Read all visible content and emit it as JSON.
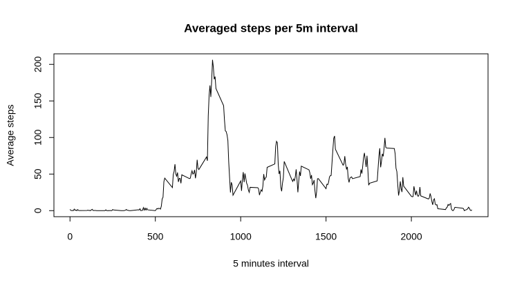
{
  "chart_data": {
    "type": "line",
    "title": "Averaged steps per 5m interval",
    "x_label": "5 minutes interval",
    "y_label": "Average steps",
    "color": "#000000",
    "x": [
      0,
      5,
      10,
      15,
      20,
      25,
      30,
      35,
      40,
      45,
      50,
      55,
      100,
      105,
      110,
      115,
      120,
      125,
      130,
      135,
      140,
      145,
      150,
      155,
      200,
      205,
      210,
      215,
      220,
      225,
      230,
      235,
      240,
      245,
      250,
      255,
      300,
      305,
      310,
      315,
      320,
      325,
      330,
      335,
      340,
      345,
      350,
      355,
      400,
      405,
      410,
      415,
      420,
      425,
      430,
      435,
      440,
      445,
      450,
      455,
      500,
      505,
      510,
      515,
      520,
      525,
      530,
      535,
      540,
      545,
      550,
      555,
      600,
      605,
      610,
      615,
      620,
      625,
      630,
      635,
      640,
      645,
      650,
      655,
      700,
      705,
      710,
      715,
      720,
      725,
      730,
      735,
      740,
      745,
      750,
      755,
      800,
      805,
      810,
      815,
      820,
      825,
      830,
      835,
      840,
      845,
      850,
      855,
      900,
      905,
      910,
      915,
      920,
      925,
      930,
      935,
      940,
      945,
      950,
      955,
      1000,
      1005,
      1010,
      1015,
      1020,
      1025,
      1030,
      1035,
      1040,
      1045,
      1050,
      1055,
      1100,
      1105,
      1110,
      1115,
      1120,
      1125,
      1130,
      1135,
      1140,
      1145,
      1150,
      1155,
      1200,
      1205,
      1210,
      1215,
      1220,
      1225,
      1230,
      1235,
      1240,
      1245,
      1250,
      1255,
      1300,
      1305,
      1310,
      1315,
      1320,
      1325,
      1330,
      1335,
      1340,
      1345,
      1350,
      1355,
      1400,
      1405,
      1410,
      1415,
      1420,
      1425,
      1430,
      1435,
      1440,
      1445,
      1450,
      1455,
      1500,
      1505,
      1510,
      1515,
      1520,
      1525,
      1530,
      1535,
      1540,
      1545,
      1550,
      1555,
      1600,
      1605,
      1610,
      1615,
      1620,
      1625,
      1630,
      1635,
      1640,
      1645,
      1650,
      1655,
      1700,
      1705,
      1710,
      1715,
      1720,
      1725,
      1730,
      1735,
      1740,
      1745,
      1750,
      1755,
      1800,
      1805,
      1810,
      1815,
      1820,
      1825,
      1830,
      1835,
      1840,
      1845,
      1850,
      1855,
      1900,
      1905,
      1910,
      1915,
      1920,
      1925,
      1930,
      1935,
      1940,
      1945,
      1950,
      1955,
      2000,
      2005,
      2010,
      2015,
      2020,
      2025,
      2030,
      2035,
      2040,
      2045,
      2050,
      2055,
      2100,
      2105,
      2110,
      2115,
      2120,
      2125,
      2130,
      2135,
      2140,
      2145,
      2150,
      2155,
      2200,
      2205,
      2210,
      2215,
      2220,
      2225,
      2230,
      2235,
      2240,
      2245,
      2250,
      2255,
      2300,
      2305,
      2310,
      2315,
      2320,
      2325,
      2330,
      2335,
      2340,
      2345,
      2350,
      2355
    ],
    "values": [
      1.7,
      0.3,
      0.1,
      0.2,
      0.1,
      2.1,
      0.5,
      0.9,
      0,
      1.5,
      0.3,
      0.1,
      0.3,
      0.7,
      0.2,
      0.3,
      0,
      1.1,
      1.8,
      0.2,
      0.2,
      0.3,
      0.3,
      0,
      0,
      0,
      1.1,
      0,
      0,
      0.1,
      0,
      0.2,
      0,
      0,
      1.5,
      0.9,
      0,
      0,
      0,
      0,
      0.2,
      0.6,
      1.6,
      0.6,
      0.5,
      0.1,
      0,
      0,
      1.2,
      0.9,
      2.6,
      0,
      0.3,
      0.4,
      4.1,
      0.7,
      3.5,
      0.8,
      3.1,
      1.1,
      0,
      1.6,
      3,
      2.2,
      3.3,
      3,
      2.1,
      6.1,
      16,
      18.3,
      39.5,
      44.5,
      31.5,
      49.3,
      53.8,
      63.5,
      50,
      47.1,
      52.2,
      39.3,
      44,
      44.2,
      37.4,
      49,
      43.8,
      44.4,
      50.5,
      54.5,
      49.9,
      51,
      55.7,
      44.3,
      52.3,
      69.5,
      57.8,
      56.2,
      73.4,
      68.2,
      129.4,
      157.5,
      171.2,
      155.4,
      177.3,
      206.2,
      195.9,
      179.6,
      183.4,
      167,
      143.5,
      124,
      109.1,
      108.1,
      103.7,
      96,
      66.2,
      45.2,
      24.8,
      38.8,
      35,
      21.1,
      40.6,
      27,
      42.4,
      52.7,
      38.9,
      50.8,
      44.3,
      37.4,
      34.7,
      28.3,
      25.1,
      31.9,
      31.4,
      29.7,
      21.3,
      25.5,
      28.4,
      26.5,
      33.4,
      50,
      42,
      44.6,
      46,
      59.2,
      63.9,
      87.7,
      94.8,
      92.8,
      63.4,
      50.2,
      54.5,
      32.4,
      26.5,
      37.7,
      45.1,
      67.3,
      42.3,
      39.9,
      43.3,
      41,
      46.2,
      56.4,
      42.8,
      25.1,
      40,
      53.5,
      47.4,
      60.8,
      55.8,
      52,
      43.6,
      48.7,
      35.5,
      37.5,
      41.8,
      27.5,
      17.1,
      26.1,
      43.6,
      43.8,
      30,
      36.1,
      35.5,
      38.8,
      46,
      47.8,
      48.1,
      65.3,
      82.9,
      98.7,
      102.1,
      84,
      62.1,
      64.1,
      74.5,
      63.2,
      56.9,
      59.8,
      43.9,
      38.6,
      44.7,
      45.5,
      46.2,
      43.7,
      46.6,
      56.3,
      50.7,
      61.2,
      72.7,
      78.9,
      68.9,
      59.7,
      75.1,
      56.5,
      34.8,
      37.5,
      40.7,
      58,
      74.7,
      85.3,
      59.3,
      67.8,
      77.7,
      74.2,
      85.3,
      99.5,
      86.6,
      85.6,
      84.9,
      77.8,
      58,
      53.4,
      36.3,
      20.7,
      27.4,
      40,
      30.2,
      25.5,
      45.7,
      33.5,
      19.6,
      19,
      19.3,
      33.3,
      26.8,
      21.2,
      27.3,
      21.3,
      19.5,
      21.3,
      32.3,
      20.2,
      15.9,
      17.2,
      23.5,
      19.2,
      12.5,
      8,
      14.7,
      16.3,
      8.7,
      7.8,
      8.1,
      2.6,
      1.5,
      3.7,
      4.8,
      8.5,
      7.1,
      8.7,
      9.8,
      2.2,
      0.3,
      0.1,
      1.6,
      4.6,
      3.3,
      2.8,
      0,
      0.8,
      1,
      1.6,
      2.6,
      4.7,
      3.3,
      0.6,
      0.2,
      1.1
    ],
    "xlim": [
      -94.2,
      2449.2
    ],
    "ylim": [
      -8.25,
      214.4
    ],
    "xticks": [
      0,
      500,
      1000,
      1500,
      2000
    ],
    "yticks": [
      0,
      50,
      100,
      150,
      200
    ]
  }
}
